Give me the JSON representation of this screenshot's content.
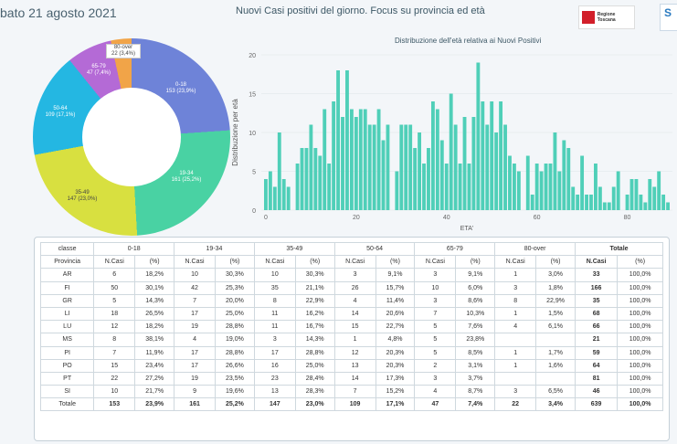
{
  "header": {
    "date": "bato 21 agosto 2021",
    "title": "Nuovi Casi positivi del giorno. Focus su provincia ed età",
    "logo_text": "Regione Toscana",
    "logo2_text": "S"
  },
  "donut": {
    "slices": [
      {
        "label": "0-18",
        "value": "153 (23,9%)",
        "color": "#6e83d8"
      },
      {
        "label": "19-34",
        "value": "161 (25,2%)",
        "color": "#49d2a3"
      },
      {
        "label": "35-49",
        "value": "147 (23,0%)",
        "color": "#d8e040"
      },
      {
        "label": "50-64",
        "value": "109 (17,1%)",
        "color": "#24b7e2"
      },
      {
        "label": "65-79",
        "value": "47 (7,4%)",
        "color": "#b46ad6"
      },
      {
        "label": "80-over",
        "value": "22 (3,4%)",
        "color": "#f1a448"
      }
    ]
  },
  "chart_data": {
    "type": "bar",
    "title": "Distribuzione dell'età relativa ai Nuovi Positivi",
    "xlabel": "ETA'",
    "ylabel": "Distribuzione per età",
    "ylim": [
      0,
      20
    ],
    "xlim": [
      -1,
      90
    ],
    "xticks": [
      0,
      20,
      40,
      60,
      80
    ],
    "yticks": [
      0,
      5,
      10,
      15,
      20
    ],
    "color": "#4fcfb8",
    "x": [
      0,
      1,
      2,
      3,
      4,
      5,
      6,
      7,
      8,
      9,
      10,
      11,
      12,
      13,
      14,
      15,
      16,
      17,
      18,
      19,
      20,
      21,
      22,
      23,
      24,
      25,
      26,
      27,
      28,
      29,
      30,
      31,
      32,
      33,
      34,
      35,
      36,
      37,
      38,
      39,
      40,
      41,
      42,
      43,
      44,
      45,
      46,
      47,
      48,
      49,
      50,
      51,
      52,
      53,
      54,
      55,
      56,
      57,
      58,
      59,
      60,
      61,
      62,
      63,
      64,
      65,
      66,
      67,
      68,
      69,
      70,
      71,
      72,
      73,
      74,
      75,
      76,
      77,
      78,
      79,
      80,
      81,
      82,
      83,
      84,
      85,
      86,
      87,
      88,
      89
    ],
    "values": [
      4,
      5,
      3,
      10,
      4,
      3,
      0,
      6,
      8,
      8,
      11,
      8,
      7,
      13,
      6,
      14,
      18,
      12,
      18,
      13,
      12,
      13,
      13,
      11,
      11,
      13,
      9,
      11,
      0,
      5,
      11,
      11,
      11,
      8,
      10,
      6,
      8,
      14,
      13,
      9,
      6,
      15,
      11,
      6,
      12,
      6,
      12,
      19,
      14,
      11,
      14,
      10,
      14,
      11,
      7,
      6,
      5,
      0,
      7,
      2,
      6,
      5,
      6,
      6,
      10,
      5,
      9,
      8,
      3,
      2,
      7,
      2,
      2,
      6,
      3,
      1,
      1,
      3,
      5,
      0,
      2,
      4,
      4,
      2,
      1,
      4,
      3,
      5,
      2,
      1
    ]
  },
  "table": {
    "group_headers": [
      "classe",
      "0-18",
      "19-34",
      "35-49",
      "50-64",
      "65-79",
      "80-over",
      "Totale"
    ],
    "sub_headers": [
      "Provincia",
      "N.Casi",
      "(%)",
      "N.Casi",
      "(%)",
      "N.Casi",
      "(%)",
      "N.Casi",
      "(%)",
      "N.Casi",
      "(%)",
      "N.Casi",
      "(%)",
      "N.Casi",
      "(%)"
    ],
    "rows": [
      [
        "AR",
        "6",
        "18,2%",
        "10",
        "30,3%",
        "10",
        "30,3%",
        "3",
        "9,1%",
        "3",
        "9,1%",
        "1",
        "3,0%",
        "33",
        "100,0%"
      ],
      [
        "FI",
        "50",
        "30,1%",
        "42",
        "25,3%",
        "35",
        "21,1%",
        "26",
        "15,7%",
        "10",
        "6,0%",
        "3",
        "1,8%",
        "166",
        "100,0%"
      ],
      [
        "GR",
        "5",
        "14,3%",
        "7",
        "20,0%",
        "8",
        "22,9%",
        "4",
        "11,4%",
        "3",
        "8,6%",
        "8",
        "22,9%",
        "35",
        "100,0%"
      ],
      [
        "LI",
        "18",
        "26,5%",
        "17",
        "25,0%",
        "11",
        "16,2%",
        "14",
        "20,6%",
        "7",
        "10,3%",
        "1",
        "1,5%",
        "68",
        "100,0%"
      ],
      [
        "LU",
        "12",
        "18,2%",
        "19",
        "28,8%",
        "11",
        "16,7%",
        "15",
        "22,7%",
        "5",
        "7,6%",
        "4",
        "6,1%",
        "66",
        "100,0%"
      ],
      [
        "MS",
        "8",
        "38,1%",
        "4",
        "19,0%",
        "3",
        "14,3%",
        "1",
        "4,8%",
        "5",
        "23,8%",
        "",
        "",
        "21",
        "100,0%"
      ],
      [
        "PI",
        "7",
        "11,9%",
        "17",
        "28,8%",
        "17",
        "28,8%",
        "12",
        "20,3%",
        "5",
        "8,5%",
        "1",
        "1,7%",
        "59",
        "100,0%"
      ],
      [
        "PO",
        "15",
        "23,4%",
        "17",
        "26,6%",
        "16",
        "25,0%",
        "13",
        "20,3%",
        "2",
        "3,1%",
        "1",
        "1,6%",
        "64",
        "100,0%"
      ],
      [
        "PT",
        "22",
        "27,2%",
        "19",
        "23,5%",
        "23",
        "28,4%",
        "14",
        "17,3%",
        "3",
        "3,7%",
        "",
        "",
        "81",
        "100,0%"
      ],
      [
        "SI",
        "10",
        "21,7%",
        "9",
        "19,6%",
        "13",
        "28,3%",
        "7",
        "15,2%",
        "4",
        "8,7%",
        "3",
        "6,5%",
        "46",
        "100,0%"
      ]
    ],
    "total_row": [
      "Totale",
      "153",
      "23,9%",
      "161",
      "25,2%",
      "147",
      "23,0%",
      "109",
      "17,1%",
      "47",
      "7,4%",
      "22",
      "3,4%",
      "639",
      "100,0%"
    ]
  }
}
